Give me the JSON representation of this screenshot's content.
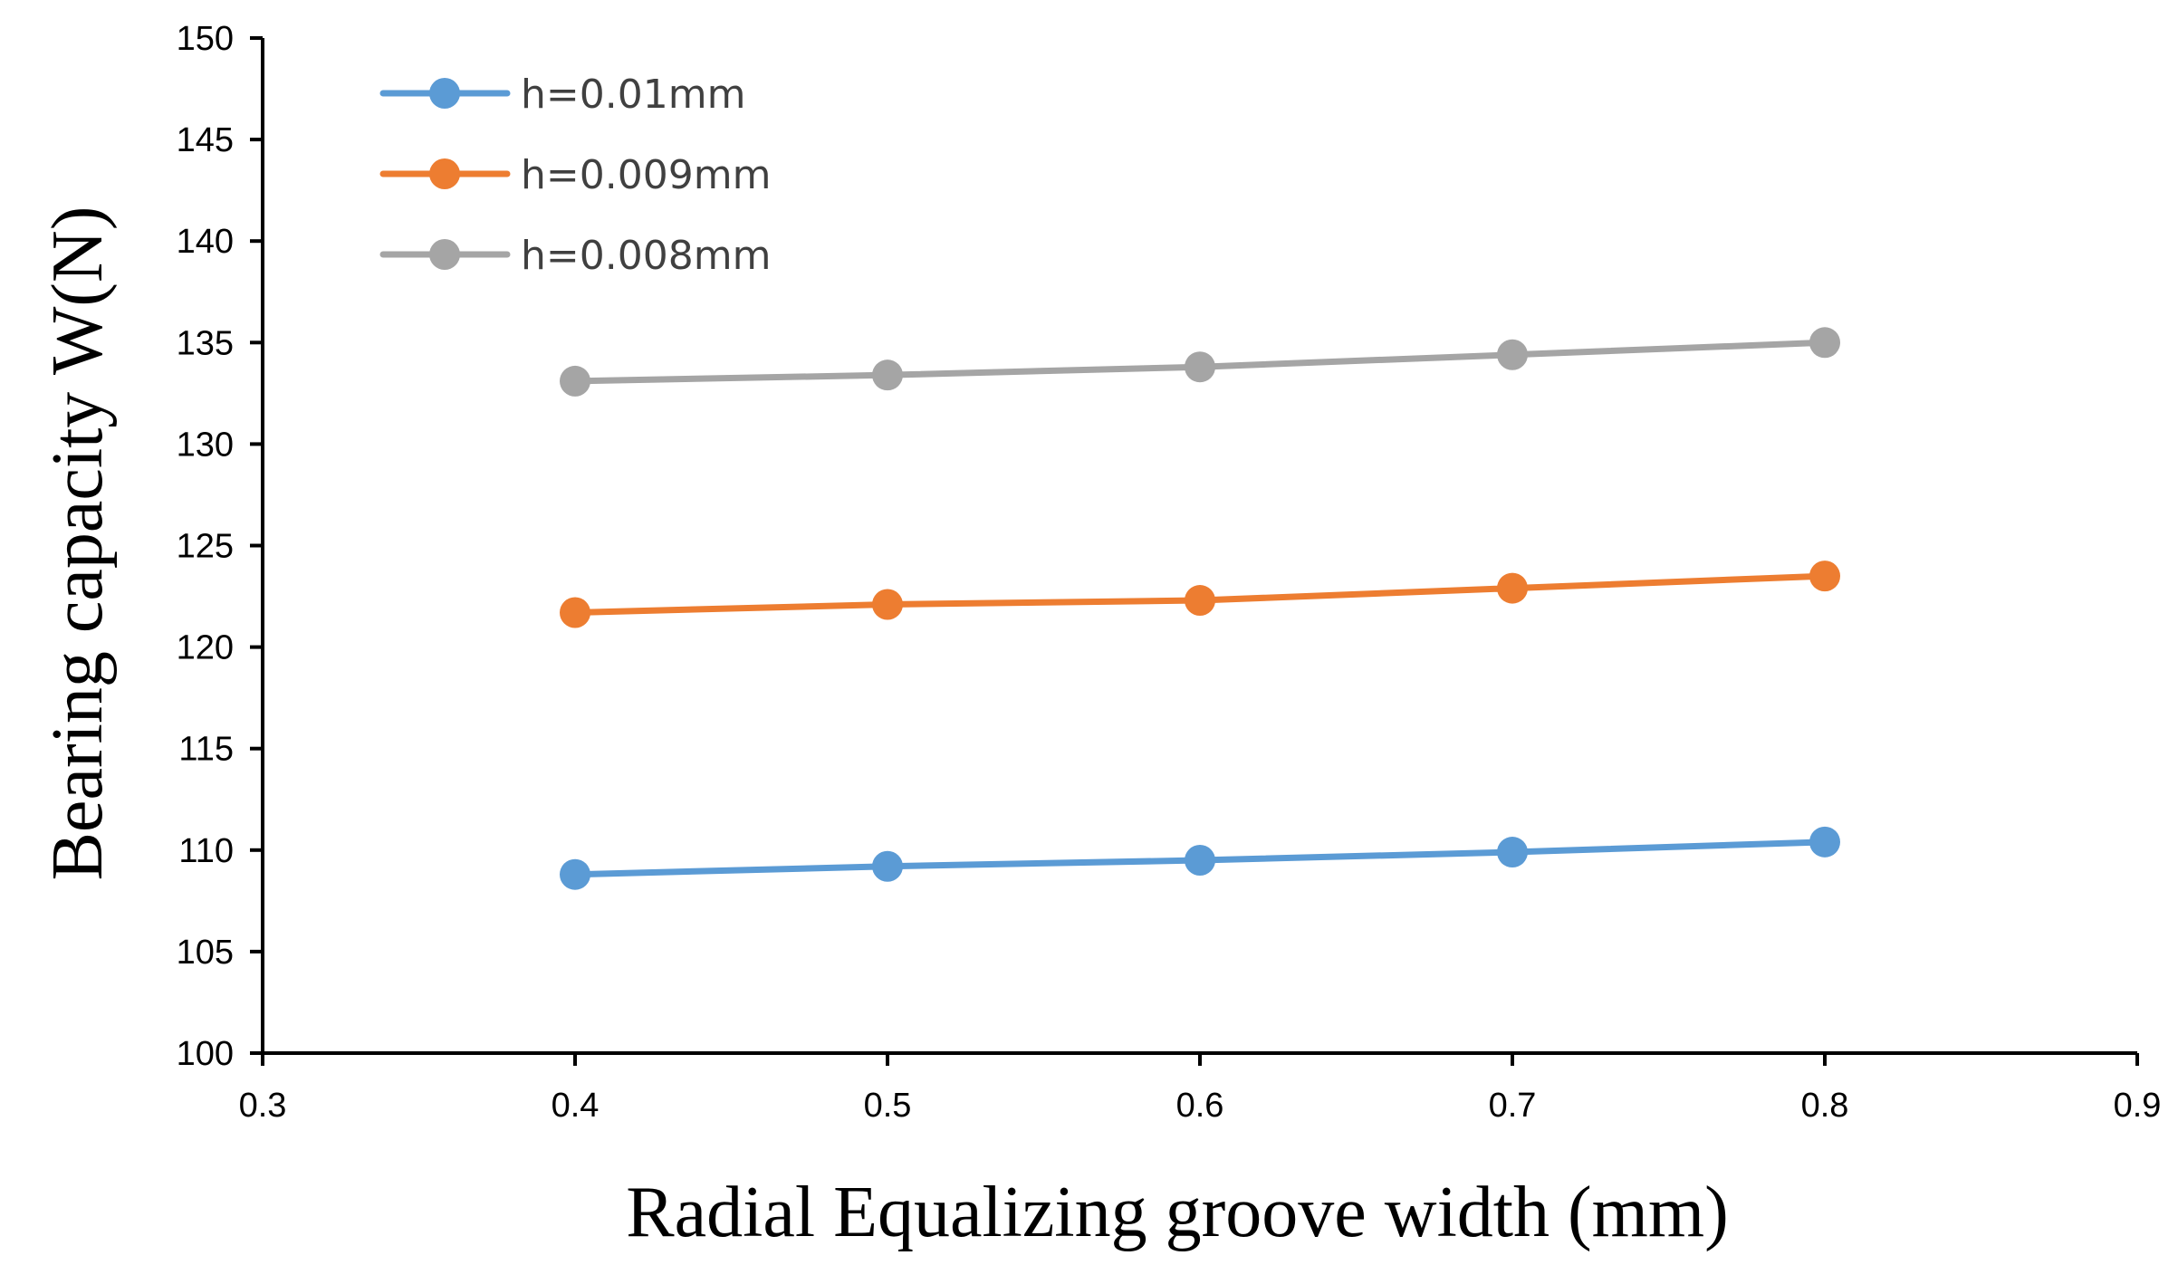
{
  "chart_data": {
    "type": "line",
    "title": "",
    "xlabel": "Radial Equalizing groove width (mm)",
    "ylabel": "Bearing capacity W(N)",
    "xlim": [
      0.3,
      0.9
    ],
    "ylim": [
      100,
      150
    ],
    "xticks": [
      "0.3",
      "0.4",
      "0.5",
      "0.6",
      "0.7",
      "0.8",
      "0.9"
    ],
    "yticks": [
      "100",
      "105",
      "110",
      "115",
      "120",
      "125",
      "130",
      "135",
      "140",
      "145",
      "150"
    ],
    "grid": false,
    "legend_position": "top-left",
    "x": [
      0.4,
      0.5,
      0.6,
      0.7,
      0.8
    ],
    "series": [
      {
        "name": "h=0.01mm",
        "color": "#5b9bd5",
        "values": [
          108.8,
          109.2,
          109.5,
          109.9,
          110.4
        ]
      },
      {
        "name": "h=0.009mm",
        "color": "#ed7d31",
        "values": [
          121.7,
          122.1,
          122.3,
          122.9,
          123.5
        ]
      },
      {
        "name": "h=0.008mm",
        "color": "#a5a5a5",
        "values": [
          133.1,
          133.4,
          133.8,
          134.4,
          135.0
        ]
      }
    ]
  }
}
